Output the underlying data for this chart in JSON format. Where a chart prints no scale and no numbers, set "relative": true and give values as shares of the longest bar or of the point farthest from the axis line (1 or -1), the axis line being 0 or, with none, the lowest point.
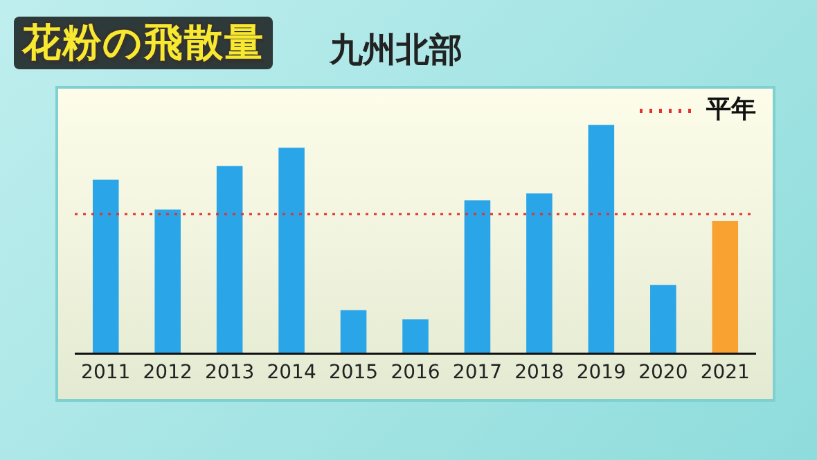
{
  "chart_data": {
    "type": "bar",
    "title": "花粉の飛散量",
    "subtitle": "九州北部",
    "relative": true,
    "categories": [
      "2011",
      "2012",
      "2013",
      "2014",
      "2015",
      "2016",
      "2017",
      "2018",
      "2019",
      "2020",
      "2021"
    ],
    "values": [
      0.76,
      0.63,
      0.82,
      0.9,
      0.19,
      0.15,
      0.67,
      0.7,
      1,
      0.3,
      0.58
    ],
    "colors": [
      "#2aa5e8",
      "#2aa5e8",
      "#2aa5e8",
      "#2aa5e8",
      "#2aa5e8",
      "#2aa5e8",
      "#2aa5e8",
      "#2aa5e8",
      "#2aa5e8",
      "#2aa5e8",
      "#f9a232"
    ],
    "ref_lines": [
      {
        "axis": "y",
        "value": 0.61,
        "label": "平年",
        "color": "#e53030",
        "line_style": "dotted"
      }
    ],
    "grid": false,
    "legend": "top right"
  }
}
